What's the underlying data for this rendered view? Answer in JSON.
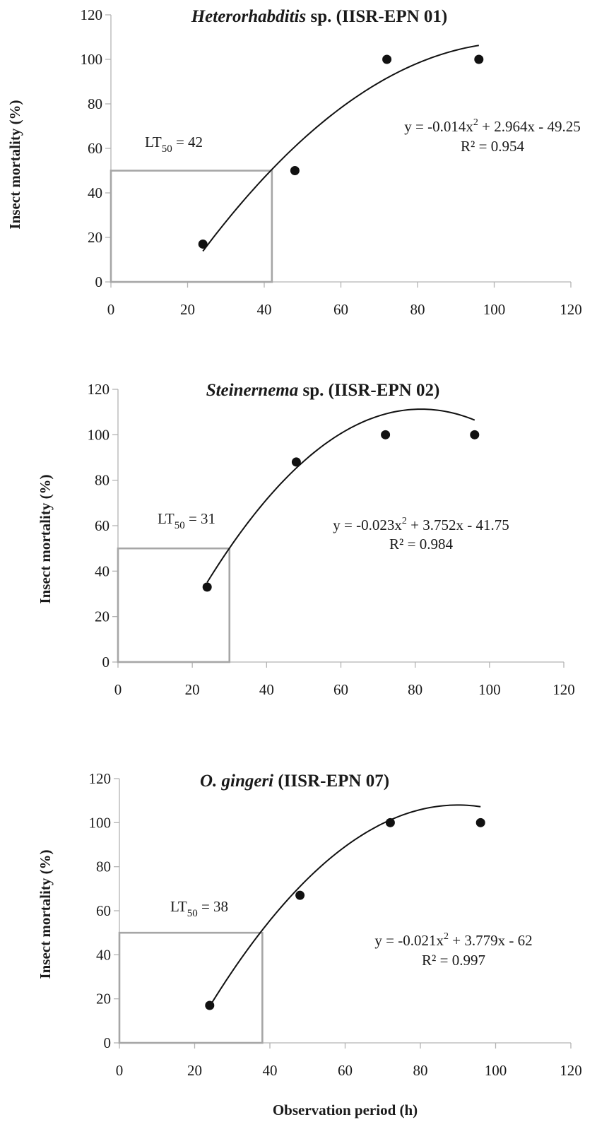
{
  "chart_data": [
    {
      "type": "scatter",
      "title": {
        "italic": "Heterorhabditis",
        "rest": " sp. (IISR-EPN 01)"
      },
      "ylabel": "Insect mortality (%)",
      "xlabel": "",
      "xlim": [
        0,
        120
      ],
      "ylim": [
        0,
        120
      ],
      "xticks": [
        "0",
        "20",
        "40",
        "60",
        "80",
        "100",
        "120"
      ],
      "yticks": [
        "0",
        "20",
        "40",
        "60",
        "80",
        "100",
        "120"
      ],
      "points": [
        {
          "x": 24,
          "y": 17
        },
        {
          "x": 48,
          "y": 50
        },
        {
          "x": 72,
          "y": 100
        },
        {
          "x": 96,
          "y": 100
        }
      ],
      "trendline": {
        "type": "polynomial",
        "a": -0.014,
        "b": 2.964,
        "c": -49.25,
        "x_range": [
          24,
          96
        ]
      },
      "equation": {
        "pre": "y = -0.014x",
        "sup": "2",
        "post": " + 2.964x - 49.25"
      },
      "r2": "R² = 0.954",
      "lt50": {
        "label": "LT",
        "sub": "50",
        "value": " = 42",
        "x": 42,
        "y": 50
      }
    },
    {
      "type": "scatter",
      "title": {
        "italic": "Steinernema",
        "rest": " sp. (IISR-EPN 02)"
      },
      "ylabel": "Insect mortality (%)",
      "xlabel": "",
      "xlim": [
        0,
        120
      ],
      "ylim": [
        0,
        120
      ],
      "xticks": [
        "0",
        "20",
        "40",
        "60",
        "80",
        "100",
        "120"
      ],
      "yticks": [
        "0",
        "20",
        "40",
        "60",
        "80",
        "100",
        "120"
      ],
      "points": [
        {
          "x": 24,
          "y": 33
        },
        {
          "x": 48,
          "y": 88
        },
        {
          "x": 72,
          "y": 100
        },
        {
          "x": 96,
          "y": 100
        }
      ],
      "trendline": {
        "type": "polynomial",
        "a": -0.023,
        "b": 3.752,
        "c": -41.75,
        "x_range": [
          24,
          96
        ]
      },
      "equation": {
        "pre": "y = -0.023x",
        "sup": "2",
        "post": " + 3.752x - 41.75"
      },
      "r2": "R² = 0.984",
      "lt50": {
        "label": "LT",
        "sub": "50",
        "value": " = 31",
        "x": 30,
        "y": 50
      }
    },
    {
      "type": "scatter",
      "title": {
        "italic": "O. gingeri",
        "rest": " (IISR-EPN 07)"
      },
      "ylabel": "Insect mortality (%)",
      "xlabel": "Observation period (h)",
      "xlim": [
        0,
        120
      ],
      "ylim": [
        0,
        120
      ],
      "xticks": [
        "0",
        "20",
        "40",
        "60",
        "80",
        "100",
        "120"
      ],
      "yticks": [
        "0",
        "20",
        "40",
        "60",
        "80",
        "100",
        "120"
      ],
      "points": [
        {
          "x": 24,
          "y": 17
        },
        {
          "x": 48,
          "y": 67
        },
        {
          "x": 72,
          "y": 100
        },
        {
          "x": 96,
          "y": 100
        }
      ],
      "trendline": {
        "type": "polynomial",
        "a": -0.021,
        "b": 3.779,
        "c": -62,
        "x_range": [
          24,
          96
        ]
      },
      "equation": {
        "pre": "y = -0.021x",
        "sup": "2",
        "post": " + 3.779x - 62"
      },
      "r2": "R² = 0.997",
      "lt50": {
        "label": "LT",
        "sub": "50",
        "value": " = 38",
        "x": 38,
        "y": 50
      }
    }
  ]
}
